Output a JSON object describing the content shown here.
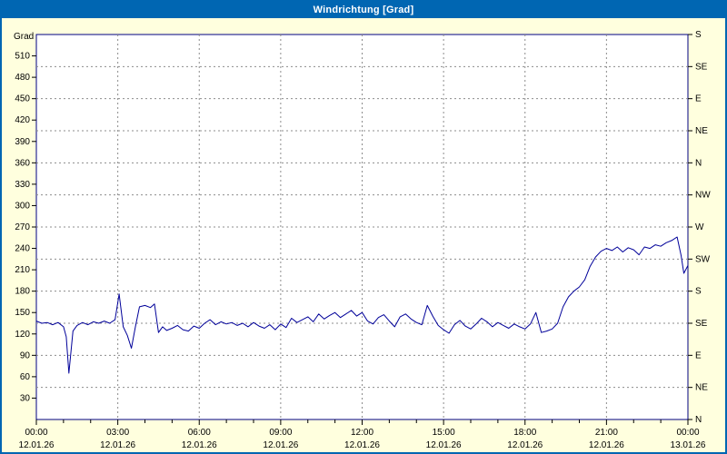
{
  "window": {
    "title": "Windrichtung [Grad]"
  },
  "colors": {
    "window_bg": "#ffffde",
    "titlebar_bg": "#0066b2",
    "titlebar_text": "#ffffff",
    "border": "#0066b2",
    "plot_bg": "#ffffff",
    "axis": "#000080",
    "grid": "#8c8c8c",
    "tick_text": "#000000",
    "line": "#000099"
  },
  "chart_data": {
    "type": "line",
    "title": "Windrichtung [Grad]",
    "ylabel": "Grad",
    "xlabel": "",
    "ylim": [
      0,
      540
    ],
    "xlim_hours": [
      0,
      24
    ],
    "grid": true,
    "legend": "none",
    "grid_y_step_deg": 45,
    "grid_x_step_hours": 3,
    "minor_tick_hours": 1,
    "y_ticks": [
      510,
      480,
      450,
      420,
      390,
      360,
      330,
      300,
      270,
      240,
      210,
      180,
      150,
      120,
      90,
      60,
      30
    ],
    "right_axis_labels": [
      {
        "value": 540,
        "label": "S"
      },
      {
        "value": 495,
        "label": "SE"
      },
      {
        "value": 450,
        "label": "E"
      },
      {
        "value": 405,
        "label": "NE"
      },
      {
        "value": 360,
        "label": "N"
      },
      {
        "value": 315,
        "label": "NW"
      },
      {
        "value": 270,
        "label": "W"
      },
      {
        "value": 225,
        "label": "SW"
      },
      {
        "value": 180,
        "label": "S"
      },
      {
        "value": 135,
        "label": "SE"
      },
      {
        "value": 90,
        "label": "E"
      },
      {
        "value": 45,
        "label": "NE"
      },
      {
        "value": 0,
        "label": "N"
      }
    ],
    "x_ticks": [
      {
        "hour": 0,
        "time": "00:00",
        "date": "12.01.26"
      },
      {
        "hour": 3,
        "time": "03:00",
        "date": "12.01.26"
      },
      {
        "hour": 6,
        "time": "06:00",
        "date": "12.01.26"
      },
      {
        "hour": 9,
        "time": "09:00",
        "date": "12.01.26"
      },
      {
        "hour": 12,
        "time": "12:00",
        "date": "12.01.26"
      },
      {
        "hour": 15,
        "time": "15:00",
        "date": "12.01.26"
      },
      {
        "hour": 18,
        "time": "18:00",
        "date": "12.01.26"
      },
      {
        "hour": 21,
        "time": "21:00",
        "date": "12.01.26"
      },
      {
        "hour": 24,
        "time": "00:00",
        "date": "13.01.26"
      }
    ],
    "series": [
      {
        "name": "Windrichtung",
        "unit": "Grad",
        "color": "#000099",
        "points": [
          [
            0.0,
            138
          ],
          [
            0.2,
            135
          ],
          [
            0.4,
            136
          ],
          [
            0.6,
            133
          ],
          [
            0.8,
            136
          ],
          [
            1.0,
            130
          ],
          [
            1.1,
            116
          ],
          [
            1.2,
            65
          ],
          [
            1.35,
            124
          ],
          [
            1.5,
            132
          ],
          [
            1.7,
            136
          ],
          [
            1.9,
            133
          ],
          [
            2.1,
            137
          ],
          [
            2.3,
            135
          ],
          [
            2.5,
            138
          ],
          [
            2.7,
            135
          ],
          [
            2.9,
            140
          ],
          [
            3.05,
            176
          ],
          [
            3.2,
            130
          ],
          [
            3.35,
            118
          ],
          [
            3.5,
            100
          ],
          [
            3.65,
            130
          ],
          [
            3.8,
            158
          ],
          [
            4.0,
            160
          ],
          [
            4.2,
            157
          ],
          [
            4.35,
            162
          ],
          [
            4.5,
            122
          ],
          [
            4.65,
            130
          ],
          [
            4.8,
            125
          ],
          [
            5.0,
            128
          ],
          [
            5.2,
            132
          ],
          [
            5.4,
            126
          ],
          [
            5.6,
            124
          ],
          [
            5.8,
            131
          ],
          [
            6.0,
            128
          ],
          [
            6.2,
            135
          ],
          [
            6.4,
            140
          ],
          [
            6.6,
            133
          ],
          [
            6.8,
            137
          ],
          [
            7.0,
            134
          ],
          [
            7.2,
            136
          ],
          [
            7.4,
            132
          ],
          [
            7.6,
            135
          ],
          [
            7.8,
            130
          ],
          [
            8.0,
            136
          ],
          [
            8.2,
            131
          ],
          [
            8.4,
            128
          ],
          [
            8.6,
            133
          ],
          [
            8.8,
            126
          ],
          [
            9.0,
            134
          ],
          [
            9.2,
            129
          ],
          [
            9.4,
            142
          ],
          [
            9.6,
            136
          ],
          [
            9.8,
            140
          ],
          [
            10.0,
            144
          ],
          [
            10.2,
            137
          ],
          [
            10.4,
            148
          ],
          [
            10.6,
            141
          ],
          [
            10.8,
            146
          ],
          [
            11.0,
            150
          ],
          [
            11.2,
            143
          ],
          [
            11.4,
            148
          ],
          [
            11.6,
            153
          ],
          [
            11.8,
            145
          ],
          [
            12.0,
            150
          ],
          [
            12.2,
            138
          ],
          [
            12.4,
            134
          ],
          [
            12.6,
            143
          ],
          [
            12.8,
            147
          ],
          [
            13.0,
            138
          ],
          [
            13.2,
            130
          ],
          [
            13.4,
            144
          ],
          [
            13.6,
            148
          ],
          [
            13.8,
            141
          ],
          [
            14.0,
            136
          ],
          [
            14.2,
            133
          ],
          [
            14.4,
            160
          ],
          [
            14.6,
            145
          ],
          [
            14.8,
            132
          ],
          [
            15.0,
            126
          ],
          [
            15.2,
            121
          ],
          [
            15.4,
            133
          ],
          [
            15.6,
            139
          ],
          [
            15.8,
            131
          ],
          [
            16.0,
            127
          ],
          [
            16.2,
            134
          ],
          [
            16.4,
            142
          ],
          [
            16.6,
            137
          ],
          [
            16.8,
            130
          ],
          [
            17.0,
            136
          ],
          [
            17.2,
            132
          ],
          [
            17.4,
            128
          ],
          [
            17.6,
            134
          ],
          [
            17.8,
            130
          ],
          [
            18.0,
            127
          ],
          [
            18.2,
            134
          ],
          [
            18.4,
            150
          ],
          [
            18.6,
            122
          ],
          [
            18.8,
            124
          ],
          [
            19.0,
            127
          ],
          [
            19.2,
            135
          ],
          [
            19.4,
            158
          ],
          [
            19.6,
            172
          ],
          [
            19.8,
            180
          ],
          [
            20.0,
            186
          ],
          [
            20.2,
            196
          ],
          [
            20.4,
            215
          ],
          [
            20.6,
            228
          ],
          [
            20.8,
            236
          ],
          [
            21.0,
            240
          ],
          [
            21.2,
            237
          ],
          [
            21.4,
            242
          ],
          [
            21.6,
            235
          ],
          [
            21.8,
            241
          ],
          [
            22.0,
            238
          ],
          [
            22.2,
            231
          ],
          [
            22.4,
            242
          ],
          [
            22.6,
            240
          ],
          [
            22.8,
            245
          ],
          [
            23.0,
            243
          ],
          [
            23.2,
            248
          ],
          [
            23.4,
            251
          ],
          [
            23.6,
            256
          ],
          [
            23.75,
            230
          ],
          [
            23.85,
            205
          ],
          [
            24.0,
            216
          ]
        ]
      }
    ]
  }
}
